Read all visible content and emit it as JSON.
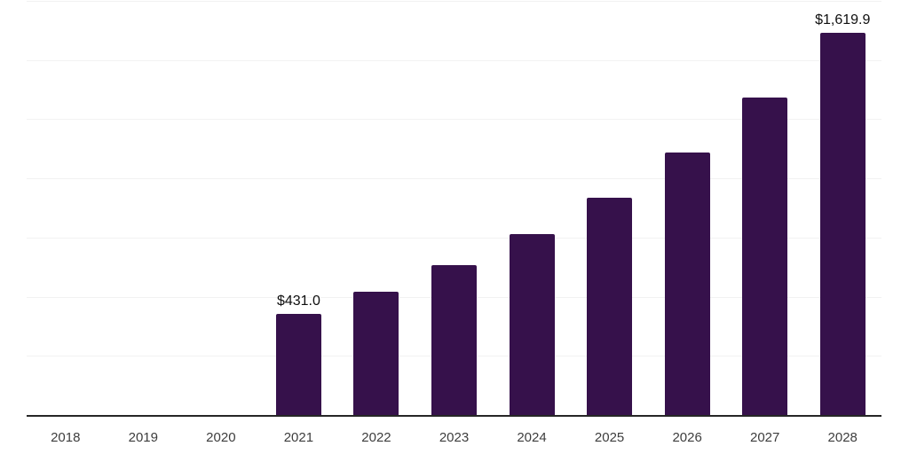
{
  "chart_data": {
    "type": "bar",
    "title": "",
    "xlabel": "",
    "ylabel": "",
    "categories": [
      "2018",
      "2019",
      "2020",
      "2021",
      "2022",
      "2023",
      "2024",
      "2025",
      "2026",
      "2027",
      "2028"
    ],
    "values": [
      0,
      0,
      0,
      431.0,
      524,
      636,
      769,
      922,
      1114,
      1347,
      1619.9
    ],
    "value_labels": [
      "",
      "",
      "",
      "$431.0",
      "",
      "",
      "",
      "",
      "",
      "",
      "$1,619.9"
    ],
    "ylim": [
      0,
      1750
    ],
    "gridline_step": 250,
    "grid": true,
    "legend": false,
    "y_tick_labels_visible": false,
    "colors": {
      "bar": "#36114B",
      "gridline": "#f2f2f2",
      "axis_line": "#262626",
      "tick_label": "#3d3d3d",
      "value_label": "#0f0f0f",
      "background": "#ffffff"
    }
  }
}
